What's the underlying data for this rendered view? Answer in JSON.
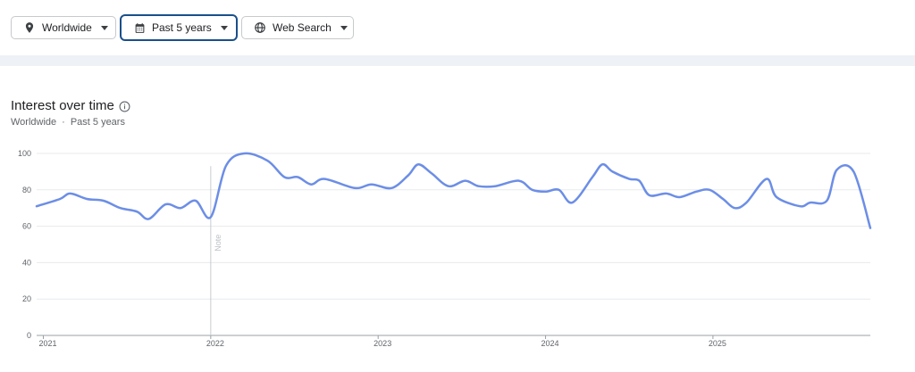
{
  "filters": [
    {
      "label": "Worldwide",
      "icon": "location-pin-icon"
    },
    {
      "label": "Past 5 years",
      "icon": "calendar-icon",
      "selected": true
    },
    {
      "label": "Web Search",
      "icon": "globe-icon"
    }
  ],
  "section": {
    "title": "Interest over time",
    "subtitle_region": "Worldwide",
    "subtitle_separator": "·",
    "subtitle_period": "Past 5 years"
  },
  "chart_data": {
    "type": "line",
    "ylim": [
      0,
      100
    ],
    "yticks": [
      0,
      20,
      40,
      60,
      80,
      100
    ],
    "xtick_labels": [
      {
        "label": "2021",
        "x": 2021.0
      },
      {
        "label": "2022",
        "x": 2022.0
      },
      {
        "label": "2023",
        "x": 2023.0
      },
      {
        "label": "2024",
        "x": 2024.0
      },
      {
        "label": "2025",
        "x": 2025.0
      }
    ],
    "xlim": [
      2020.96,
      2025.94
    ],
    "annotation": {
      "label": "Note",
      "x": 2022.0
    },
    "grid": true,
    "color": "#6c8ee6",
    "series": [
      {
        "x": [
          2020.96,
          2021.1,
          2021.16,
          2021.26,
          2021.36,
          2021.46,
          2021.56,
          2021.63,
          2021.73,
          2021.82,
          2021.91,
          2022.0,
          2022.09,
          2022.2,
          2022.34,
          2022.44,
          2022.52,
          2022.6,
          2022.68,
          2022.86,
          2022.96,
          2023.08,
          2023.18,
          2023.24,
          2023.32,
          2023.42,
          2023.52,
          2023.6,
          2023.7,
          2023.84,
          2023.92,
          2024.0,
          2024.08,
          2024.16,
          2024.28,
          2024.34,
          2024.4,
          2024.5,
          2024.56,
          2024.62,
          2024.72,
          2024.8,
          2024.9,
          2024.98,
          2025.06,
          2025.13,
          2025.2,
          2025.32,
          2025.38,
          2025.52,
          2025.58,
          2025.68,
          2025.74,
          2025.84,
          2025.94
        ],
        "values": [
          71,
          75,
          78,
          75,
          74,
          70,
          68,
          64,
          72,
          70,
          74,
          65,
          93,
          100,
          96,
          87,
          87,
          83,
          86,
          81,
          83,
          81,
          88,
          94,
          89,
          82,
          85,
          82,
          82,
          85,
          80,
          79,
          80,
          73,
          87,
          94,
          90,
          86,
          85,
          77,
          78,
          76,
          79,
          80,
          75,
          70,
          73,
          86,
          76,
          71,
          73,
          74,
          91,
          90,
          59
        ]
      }
    ]
  }
}
